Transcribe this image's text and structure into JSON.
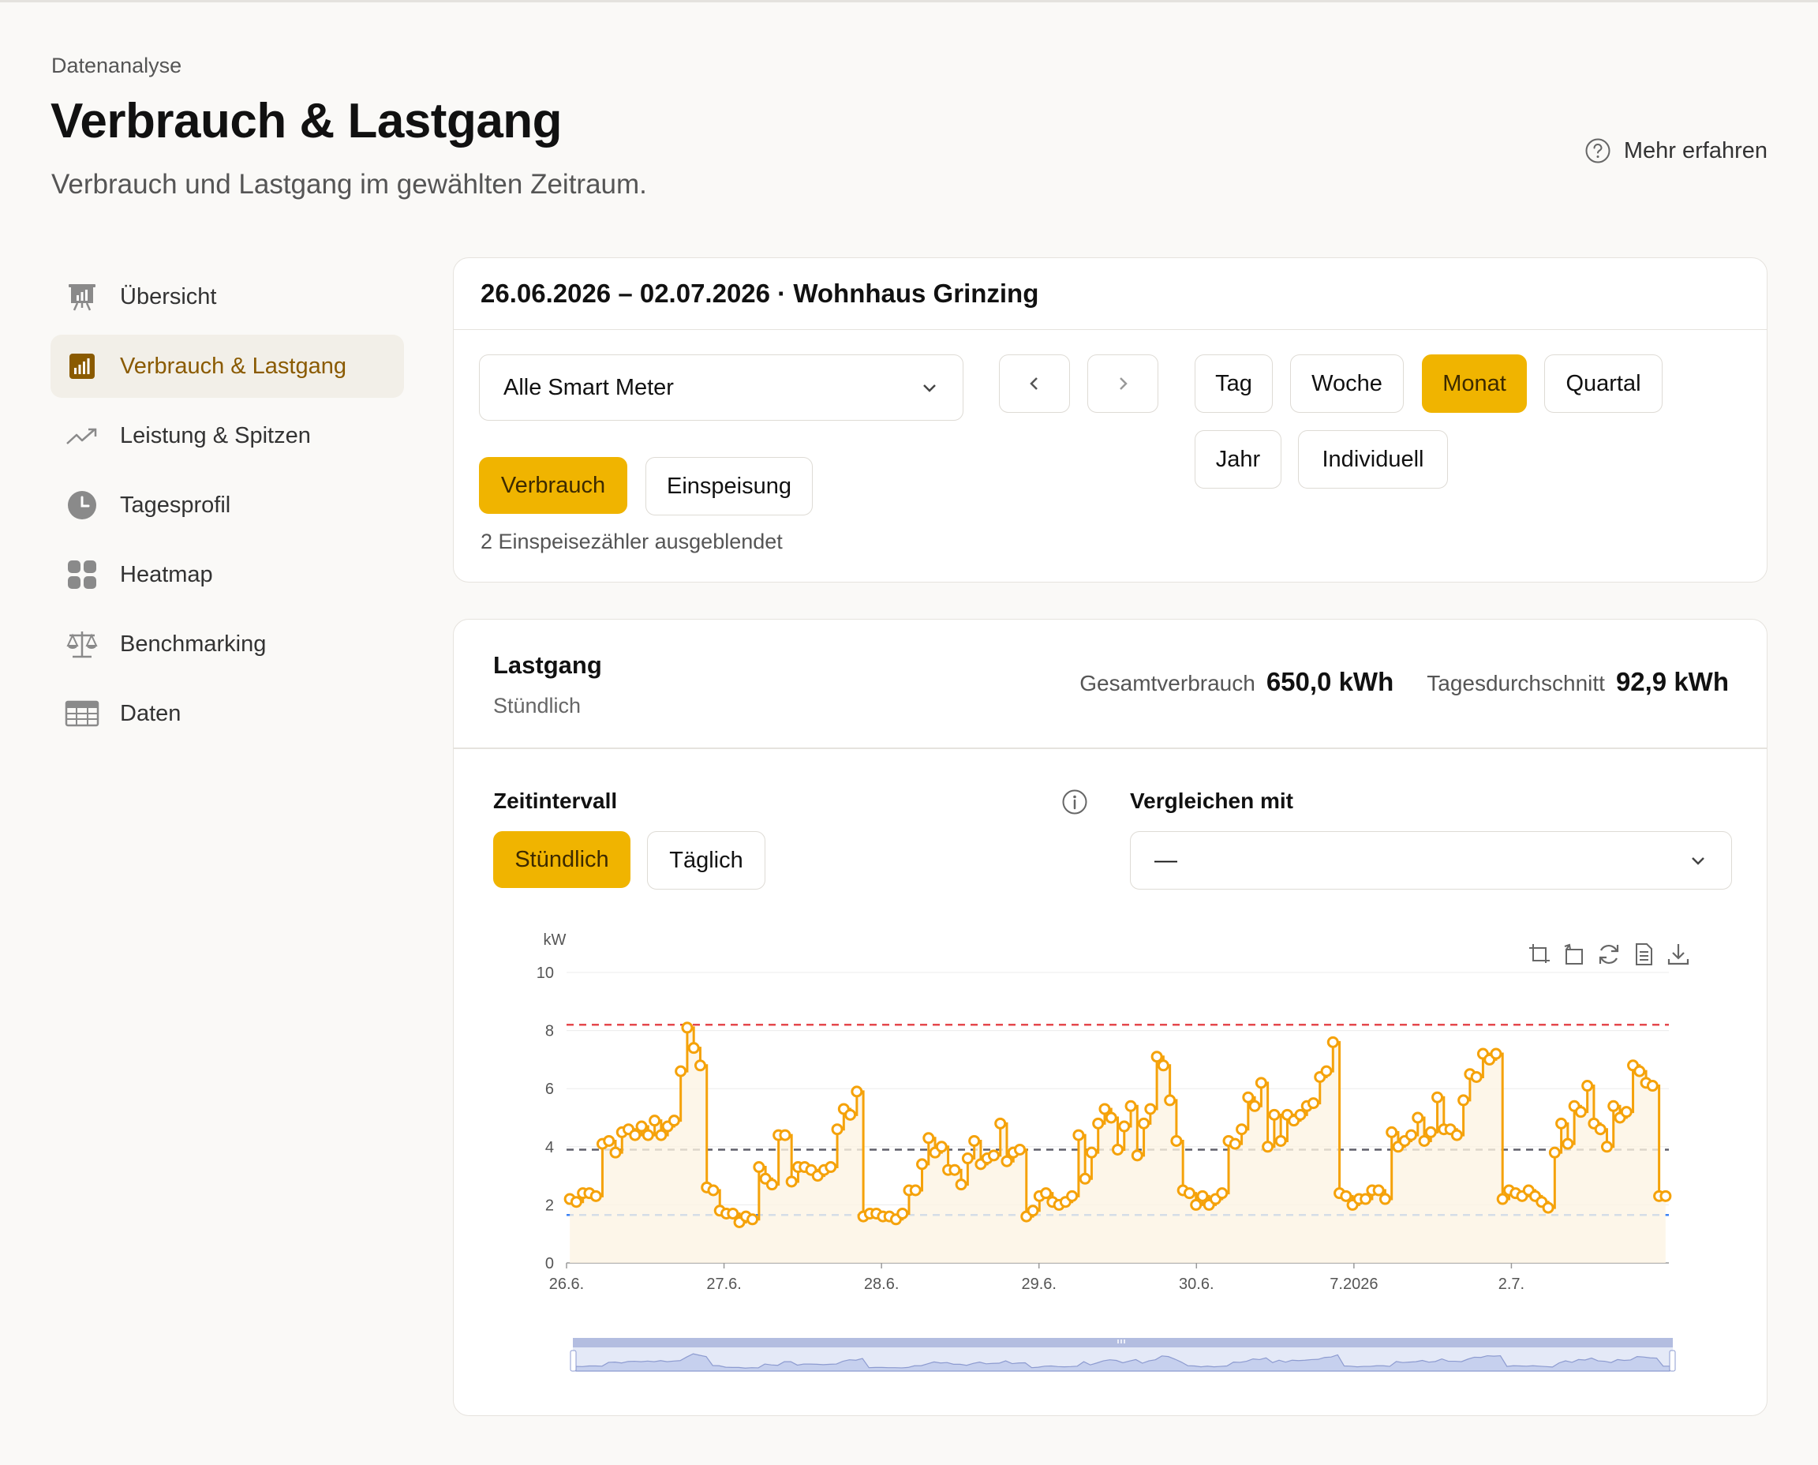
{
  "header": {
    "breadcrumb": "Datenanalyse",
    "title": "Verbrauch & Lastgang",
    "subtitle": "Verbrauch und Lastgang im gewählten Zeitraum.",
    "help_label": "Mehr erfahren"
  },
  "sidebar": {
    "items": [
      {
        "label": "Übersicht",
        "icon": "presentation-chart-icon",
        "active": false
      },
      {
        "label": "Verbrauch & Lastgang",
        "icon": "bar-chart-icon",
        "active": true
      },
      {
        "label": "Leistung & Spitzen",
        "icon": "trend-up-icon",
        "active": false
      },
      {
        "label": "Tagesprofil",
        "icon": "clock-icon",
        "active": false
      },
      {
        "label": "Heatmap",
        "icon": "grid-icon",
        "active": false
      },
      {
        "label": "Benchmarking",
        "icon": "scale-icon",
        "active": false
      },
      {
        "label": "Daten",
        "icon": "table-icon",
        "active": false
      }
    ]
  },
  "filter": {
    "range_title": "26.06.2026 – 02.07.2026 · Wohnhaus Grinzing",
    "meter_select": "Alle Smart Meter",
    "periods": [
      "Tag",
      "Woche",
      "Monat",
      "Quartal",
      "Jahr",
      "Individuell"
    ],
    "active_period": "Monat",
    "mode_consumption": "Verbrauch",
    "mode_feedin": "Einspeisung",
    "active_mode": "Verbrauch",
    "hidden_note": "2 Einspeisezähler ausgeblendet"
  },
  "load_card": {
    "title": "Lastgang",
    "subtitle": "Stündlich",
    "total_label": "Gesamtverbrauch",
    "total_value": "650,0 kWh",
    "avg_label": "Tagesdurchschnitt",
    "avg_value": "92,9 kWh",
    "interval_label": "Zeitintervall",
    "interval_hourly": "Stündlich",
    "interval_daily": "Täglich",
    "active_interval": "Stündlich",
    "compare_label": "Vergleichen mit",
    "compare_value": "—"
  },
  "colors": {
    "accent": "#f0b400",
    "series": "#f5a20a",
    "peak_line": "#e5484d",
    "avg_line": "#5f5f6a",
    "base_line": "#3b82f6"
  },
  "chart_data": {
    "type": "line",
    "ylabel": "kW",
    "ylim": [
      0,
      10
    ],
    "yticks": [
      0,
      2,
      4,
      6,
      8,
      10
    ],
    "xtick_labels": [
      "26.6.",
      "27.6.",
      "28.6.",
      "29.6.",
      "30.6.",
      "7.2026",
      "2.7."
    ],
    "reference_lines": [
      {
        "value": 8.2,
        "color": "#e5484d"
      },
      {
        "value": 3.9,
        "color": "#5f5f6a"
      },
      {
        "value": 1.65,
        "color": "#3b82f6"
      }
    ],
    "series": [
      {
        "values": [
          2.2,
          2.1,
          2.4,
          2.4,
          2.3,
          4.1,
          4.2,
          3.8,
          4.5,
          4.6,
          4.4,
          4.7,
          4.4,
          4.9,
          4.4,
          4.7,
          4.9,
          6.6,
          8.1,
          7.4,
          6.8,
          2.6,
          2.5,
          1.8,
          1.7,
          1.7,
          1.4,
          1.6,
          1.5,
          3.3,
          2.9,
          2.7,
          4.4,
          4.4,
          2.8,
          3.3,
          3.3,
          3.2,
          3.0,
          3.2,
          3.3,
          4.6,
          5.3,
          5.1,
          5.9,
          1.6,
          1.7,
          1.7,
          1.6,
          1.6,
          1.5,
          1.7,
          2.5,
          2.5,
          3.4,
          4.3,
          3.8,
          4.0,
          3.2,
          3.2,
          2.7,
          3.6,
          4.2,
          3.4,
          3.6,
          3.7,
          4.8,
          3.5,
          3.8,
          3.9,
          1.6,
          1.8,
          2.3,
          2.4,
          2.1,
          2.0,
          2.1,
          2.3,
          4.4,
          2.9,
          3.8,
          4.8,
          5.3,
          5.0,
          3.9,
          4.7,
          5.4,
          3.7,
          4.8,
          5.3,
          7.1,
          6.8,
          5.6,
          4.2,
          2.5,
          2.4,
          2.0,
          2.3,
          2.0,
          2.2,
          2.4,
          4.2,
          4.1,
          4.6,
          5.7,
          5.4,
          6.2,
          4.0,
          5.1,
          4.2,
          5.1,
          4.9,
          5.1,
          5.4,
          5.5,
          6.4,
          6.6,
          7.6,
          2.4,
          2.3,
          2.0,
          2.2,
          2.2,
          2.5,
          2.5,
          2.2,
          4.5,
          4.0,
          4.2,
          4.4,
          5.0,
          4.2,
          4.5,
          5.7,
          4.6,
          4.6,
          4.4,
          5.6,
          6.5,
          6.4,
          7.2,
          7.0,
          7.2,
          2.2,
          2.5,
          2.4,
          2.3,
          2.5,
          2.3,
          2.1,
          1.9,
          3.8,
          4.8,
          4.1,
          5.4,
          5.2,
          6.1,
          4.8,
          4.6,
          4.0,
          5.4,
          5.0,
          5.2,
          6.8,
          6.6,
          6.2,
          6.1,
          2.3,
          2.3
        ]
      }
    ]
  }
}
